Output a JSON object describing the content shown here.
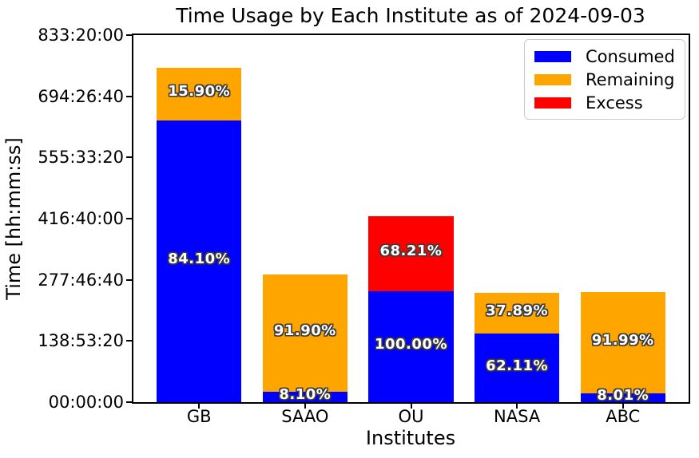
{
  "chart_data": {
    "type": "bar",
    "stacked": true,
    "title": "Time Usage by Each Institute as of 2024-09-03",
    "xlabel": "Institutes",
    "ylabel": "Time [hh:mm:ss]",
    "background": "#ffffff",
    "grid": false,
    "legend_position": "upper right",
    "categories": [
      "GB",
      "SAAO",
      "OU",
      "NASA",
      "ABC"
    ],
    "y_axis": {
      "unit": "seconds",
      "min_seconds": 0,
      "max_seconds": 3000000,
      "ticks": [
        {
          "label": "00:00:00",
          "seconds": 0
        },
        {
          "label": "138:53:20",
          "seconds": 500000
        },
        {
          "label": "277:46:40",
          "seconds": 1000000
        },
        {
          "label": "416:40:00",
          "seconds": 1500000
        },
        {
          "label": "555:33:20",
          "seconds": 2000000
        },
        {
          "label": "694:26:40",
          "seconds": 2500000
        },
        {
          "label": "833:20:00",
          "seconds": 3000000
        }
      ]
    },
    "series": [
      {
        "name": "Consumed",
        "color": "#0000ff"
      },
      {
        "name": "Remaining",
        "color": "#ffa500"
      },
      {
        "name": "Excess",
        "color": "#ff0000"
      }
    ],
    "bars": [
      {
        "category": "GB",
        "segments": [
          {
            "series": "Consumed",
            "seconds": 2305000,
            "percent": 84.1,
            "percent_label": "84.10%"
          },
          {
            "series": "Remaining",
            "seconds": 436000,
            "percent": 15.9,
            "percent_label": "15.90%"
          }
        ]
      },
      {
        "category": "SAAO",
        "segments": [
          {
            "series": "Consumed",
            "seconds": 85000,
            "percent": 8.1,
            "percent_label": "8.10%"
          },
          {
            "series": "Remaining",
            "seconds": 963000,
            "percent": 91.9,
            "percent_label": "91.90%"
          }
        ]
      },
      {
        "category": "OU",
        "segments": [
          {
            "series": "Consumed",
            "seconds": 907000,
            "percent": 100.0,
            "percent_label": "100.00%"
          },
          {
            "series": "Excess",
            "seconds": 619000,
            "percent": 68.21,
            "percent_label": "68.21%"
          }
        ]
      },
      {
        "category": "NASA",
        "segments": [
          {
            "series": "Consumed",
            "seconds": 558000,
            "percent": 62.11,
            "percent_label": "62.11%"
          },
          {
            "series": "Remaining",
            "seconds": 340000,
            "percent": 37.89,
            "percent_label": "37.89%"
          }
        ]
      },
      {
        "category": "ABC",
        "segments": [
          {
            "series": "Consumed",
            "seconds": 72500,
            "percent": 8.01,
            "percent_label": "8.01%"
          },
          {
            "series": "Remaining",
            "seconds": 832500,
            "percent": 91.99,
            "percent_label": "91.99%"
          }
        ]
      }
    ],
    "percent_label_style": {
      "text_color": "#ffffff",
      "outline_color": "#3c3c3c"
    }
  }
}
